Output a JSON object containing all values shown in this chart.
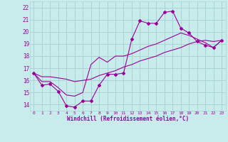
{
  "bg_color": "#c8ecec",
  "grid_color": "#aad4d4",
  "line_color": "#990099",
  "xlabel": "Windchill (Refroidissement éolien,°C)",
  "xlim": [
    -0.5,
    23.5
  ],
  "ylim": [
    13.5,
    22.5
  ],
  "yticks": [
    14,
    15,
    16,
    17,
    18,
    19,
    20,
    21,
    22
  ],
  "xticks": [
    0,
    1,
    2,
    3,
    4,
    5,
    6,
    7,
    8,
    9,
    10,
    11,
    12,
    13,
    14,
    15,
    16,
    17,
    18,
    19,
    20,
    21,
    22,
    23
  ],
  "hours": [
    0,
    1,
    2,
    3,
    4,
    5,
    6,
    7,
    8,
    9,
    10,
    11,
    12,
    13,
    14,
    15,
    16,
    17,
    18,
    19,
    20,
    21,
    22,
    23
  ],
  "main_data": [
    16.6,
    15.6,
    15.7,
    15.1,
    13.9,
    13.8,
    14.3,
    14.3,
    15.6,
    16.5,
    16.5,
    16.6,
    19.4,
    20.9,
    20.7,
    20.7,
    21.6,
    21.7,
    20.3,
    19.9,
    19.2,
    18.9,
    18.7,
    19.3
  ],
  "line2_data": [
    16.6,
    15.9,
    15.9,
    15.4,
    14.8,
    14.7,
    15.0,
    17.3,
    17.9,
    17.5,
    18.0,
    18.0,
    18.2,
    18.5,
    18.8,
    19.0,
    19.3,
    19.6,
    19.9,
    19.7,
    19.4,
    19.1,
    18.7,
    19.3
  ],
  "line3_data": [
    16.6,
    16.3,
    16.3,
    16.2,
    16.1,
    15.9,
    16.0,
    16.1,
    16.4,
    16.6,
    16.8,
    17.1,
    17.3,
    17.6,
    17.8,
    18.0,
    18.3,
    18.5,
    18.7,
    19.0,
    19.2,
    19.3,
    19.2,
    19.3
  ]
}
